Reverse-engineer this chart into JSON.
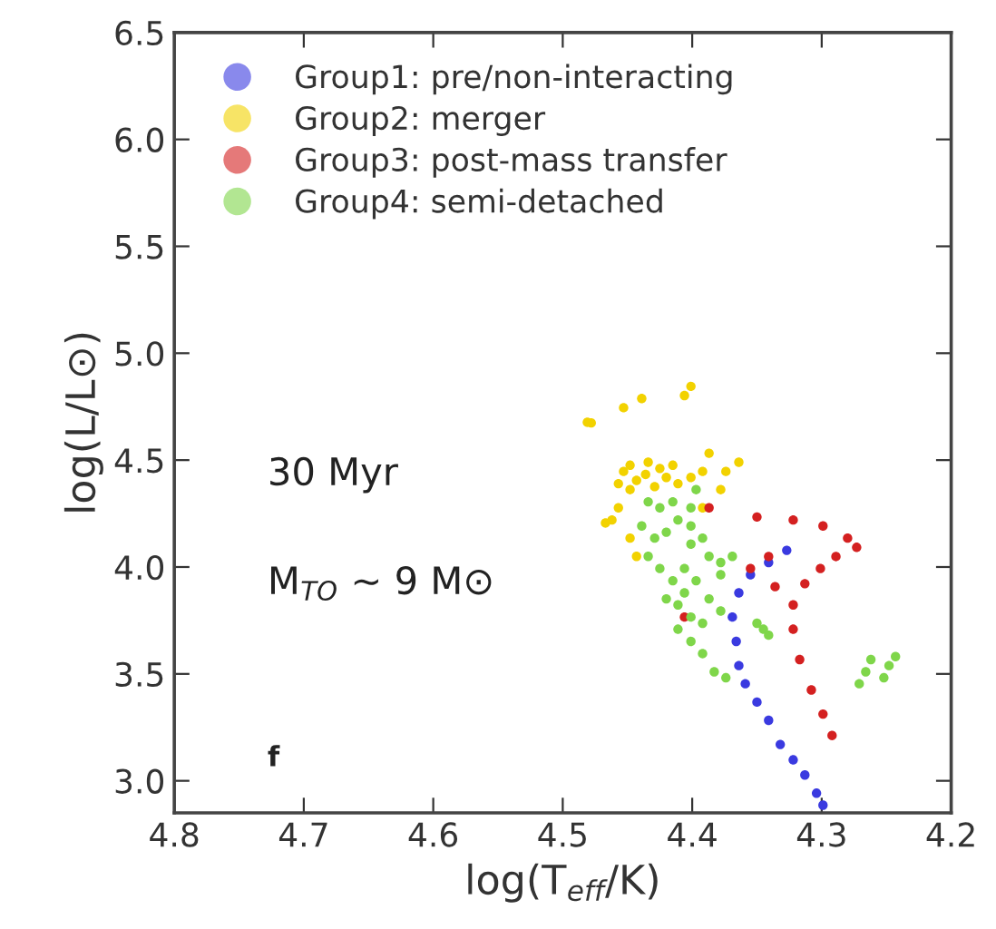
{
  "chart_data": {
    "type": "scatter",
    "xlabel": "log(T$_{eff}$/K)",
    "ylabel": "log(L/L⊙)",
    "annotations": [
      "30 Myr",
      "M$_{TO}$ ~ 9 M⊙",
      "f"
    ],
    "xlim": [
      4.8,
      4.2
    ],
    "xticks": [
      {
        "value": 4.8,
        "label": "4.8"
      },
      {
        "value": 4.7,
        "label": "4.7"
      },
      {
        "value": 4.6,
        "label": "4.6"
      },
      {
        "value": 4.5,
        "label": "4.5"
      },
      {
        "value": 4.4,
        "label": "4.4"
      },
      {
        "value": 4.3,
        "label": "4.3"
      },
      {
        "value": 4.2,
        "label": "4.2"
      }
    ],
    "ylim": [
      2.85,
      6.5
    ],
    "yticks": [
      {
        "value": 3,
        "label": "3.0"
      },
      3.5,
      {
        "value": 4,
        "label": "4.0"
      },
      4.5,
      {
        "value": 5,
        "label": "5.0"
      },
      5.5,
      {
        "value": 6,
        "label": "6.0"
      },
      6.5
    ],
    "grid": false,
    "legend": "top left",
    "marker": "circle",
    "series": [
      {
        "name": "Group1: pre/non-interacting",
        "color": "#3a3ae0",
        "x": [
          4.327,
          4.341,
          4.355,
          4.364,
          4.369,
          4.366,
          4.364,
          4.359,
          4.35,
          4.341,
          4.332,
          4.322,
          4.313,
          4.304,
          4.299
        ],
        "values": [
          4.078,
          4.021,
          3.964,
          3.879,
          3.766,
          3.652,
          3.539,
          3.454,
          3.368,
          3.283,
          3.17,
          3.098,
          3.027,
          2.942,
          2.886
        ]
      },
      {
        "name": "Group2: merger",
        "color": "#f2d200",
        "x": [
          4.481,
          4.478,
          4.453,
          4.439,
          4.401,
          4.406,
          4.453,
          4.448,
          4.434,
          4.425,
          4.42,
          4.429,
          4.448,
          4.457,
          4.443,
          4.436,
          4.462,
          4.467,
          4.448,
          4.443,
          4.411,
          4.392,
          4.374,
          4.364,
          4.387,
          4.401,
          4.378,
          4.392,
          4.415,
          4.457
        ],
        "values": [
          4.677,
          4.674,
          4.745,
          4.788,
          4.845,
          4.802,
          4.447,
          4.476,
          4.49,
          4.461,
          4.419,
          4.376,
          4.362,
          4.39,
          4.405,
          4.433,
          4.22,
          4.206,
          4.135,
          4.05,
          4.39,
          4.447,
          4.447,
          4.49,
          4.532,
          4.419,
          4.362,
          4.277,
          4.476,
          4.277
        ]
      },
      {
        "name": "Group3: post-mass transfer",
        "color": "#d42020",
        "x": [
          4.35,
          4.322,
          4.299,
          4.28,
          4.273,
          4.289,
          4.301,
          4.313,
          4.341,
          4.355,
          4.336,
          4.322,
          4.322,
          4.317,
          4.308,
          4.299,
          4.292,
          4.387,
          4.406
        ],
        "values": [
          4.234,
          4.22,
          4.192,
          4.135,
          4.092,
          4.049,
          3.993,
          3.922,
          4.049,
          3.993,
          3.908,
          3.823,
          3.709,
          3.567,
          3.425,
          3.312,
          3.212,
          4.277,
          3.766
        ]
      },
      {
        "name": "Group4: semi-detached",
        "color": "#7fd64a",
        "x": [
          4.434,
          4.425,
          4.415,
          4.439,
          4.429,
          4.42,
          4.411,
          4.401,
          4.392,
          4.434,
          4.425,
          4.415,
          4.406,
          4.411,
          4.401,
          4.411,
          4.401,
          4.392,
          4.383,
          4.374,
          4.387,
          4.378,
          4.369,
          4.397,
          4.387,
          4.378,
          4.392,
          4.42,
          4.406,
          4.401,
          4.35,
          4.345,
          4.341,
          4.271,
          4.266,
          4.262,
          4.252,
          4.248,
          4.243,
          4.378,
          4.401,
          4.397
        ],
        "values": [
          4.305,
          4.277,
          4.305,
          4.192,
          4.135,
          4.163,
          4.22,
          4.192,
          4.135,
          4.05,
          3.993,
          3.936,
          3.879,
          3.823,
          3.766,
          3.709,
          3.652,
          3.595,
          3.51,
          3.482,
          4.05,
          4.021,
          4.05,
          3.936,
          3.851,
          3.794,
          3.737,
          3.851,
          3.993,
          4.107,
          3.737,
          3.709,
          3.681,
          3.454,
          3.51,
          3.567,
          3.482,
          3.539,
          3.581,
          3.964,
          4.277,
          4.362
        ]
      }
    ]
  }
}
